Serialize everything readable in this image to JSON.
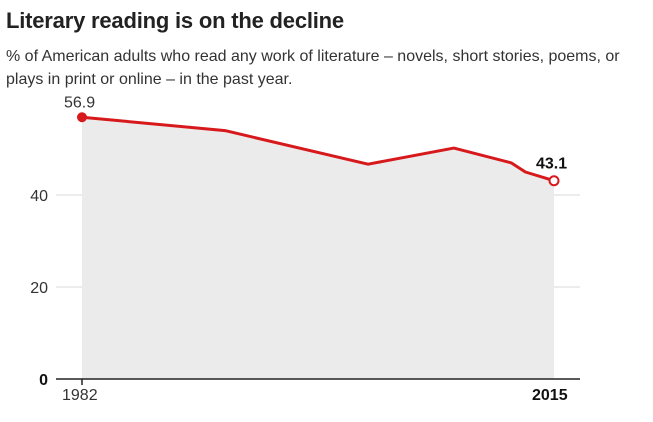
{
  "chart_data": {
    "type": "area",
    "title": "Literary reading is on the decline",
    "subtitle": "% of American adults who read any work of literature – novels, short stories, poems, or plays in print or online – in the past year.",
    "x": [
      1982,
      1992,
      2002,
      2008,
      2012,
      2013,
      2015
    ],
    "values": [
      56.9,
      54.0,
      46.7,
      50.2,
      47.0,
      45.0,
      43.1
    ],
    "xlim": [
      1982,
      2015
    ],
    "ylim": [
      0,
      60
    ],
    "yticks": [
      0,
      20,
      40
    ],
    "ytick_labels": [
      "0",
      "20",
      "40"
    ],
    "xtick_labels": [
      "1982",
      "2015"
    ],
    "start_label": "56.9",
    "end_label": "43.1",
    "xlabel": "",
    "ylabel": "",
    "grid": true,
    "colors": {
      "line": "#d7191c",
      "area": "#ebebeb",
      "grid": "#d9d9d9",
      "axis": "#222222"
    }
  }
}
